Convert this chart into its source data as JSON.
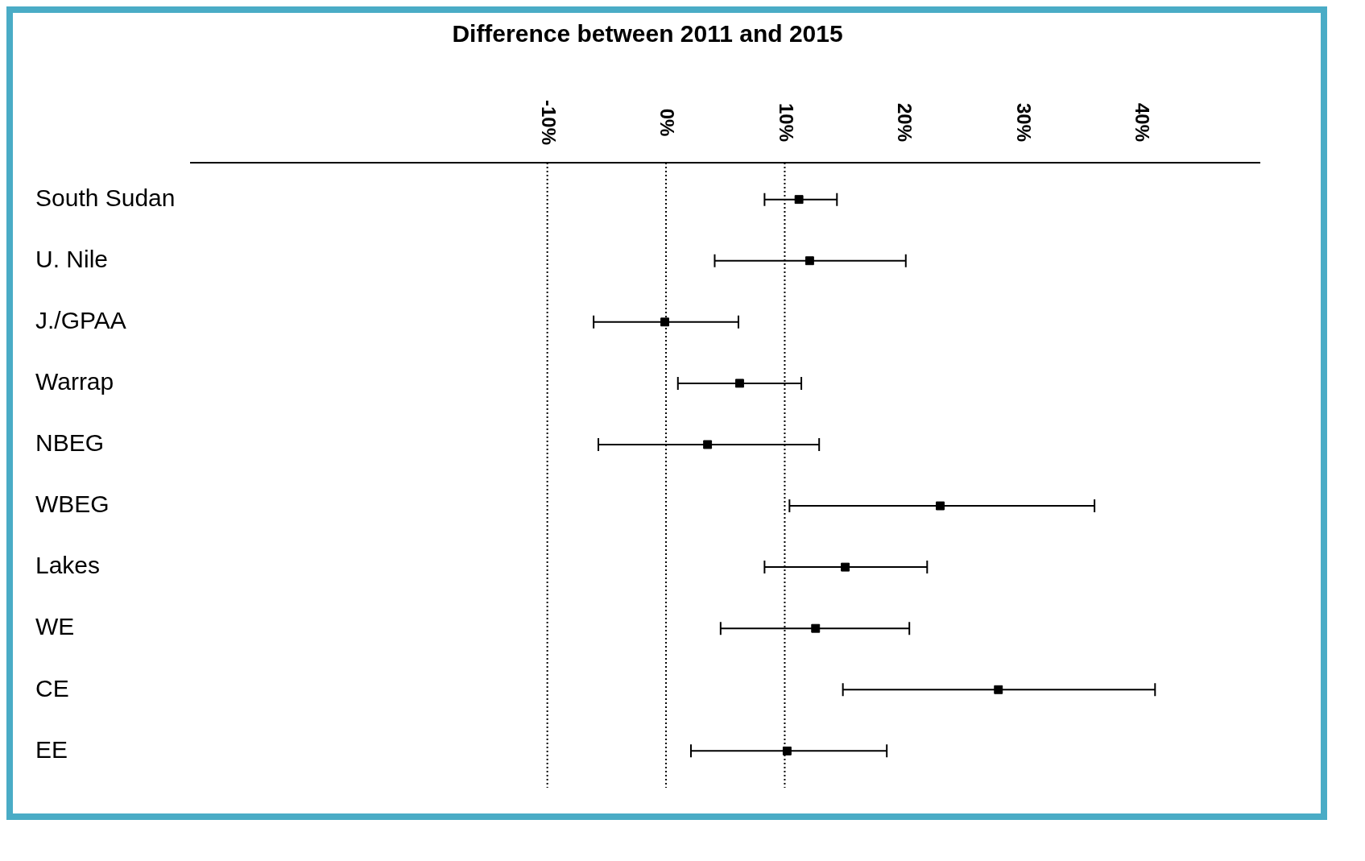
{
  "chart_data": {
    "type": "scatter",
    "orientation": "horizontal",
    "title": "Difference between 2011 and 2015",
    "categories": [
      "South Sudan",
      "U. Nile",
      "J./GPAA",
      "Warrap",
      "NBEG",
      "WBEG",
      "Lakes",
      "WE",
      "CE",
      "EE"
    ],
    "values": [
      11.2,
      12.1,
      -0.1,
      6.2,
      3.5,
      23.1,
      15.1,
      12.6,
      28.0,
      10.2
    ],
    "errors": [
      [
        8.3,
        14.4
      ],
      [
        4.1,
        20.2
      ],
      [
        -6.1,
        6.1
      ],
      [
        1.0,
        11.4
      ],
      [
        -5.7,
        12.9
      ],
      [
        10.4,
        36.1
      ],
      [
        8.3,
        22.0
      ],
      [
        4.6,
        20.5
      ],
      [
        14.9,
        41.2
      ],
      [
        2.1,
        18.6
      ]
    ],
    "color": "#000000",
    "marker": "square",
    "grid": false,
    "legend": false,
    "xlim": [
      -40,
      50
    ],
    "xticks": [
      {
        "value": -10,
        "label": "-10%"
      },
      {
        "value": 0,
        "label": "0%"
      },
      {
        "value": 10,
        "label": "10%"
      },
      {
        "value": 20,
        "label": "20%"
      },
      {
        "value": 30,
        "label": "30%"
      },
      {
        "value": 40,
        "label": "40%"
      }
    ],
    "ref_lines": [
      {
        "axis": "x",
        "value": -10,
        "line_style": "dotted"
      },
      {
        "axis": "x",
        "value": 0,
        "line_style": "dotted"
      },
      {
        "axis": "x",
        "value": 10,
        "line_style": "dotted"
      }
    ]
  }
}
